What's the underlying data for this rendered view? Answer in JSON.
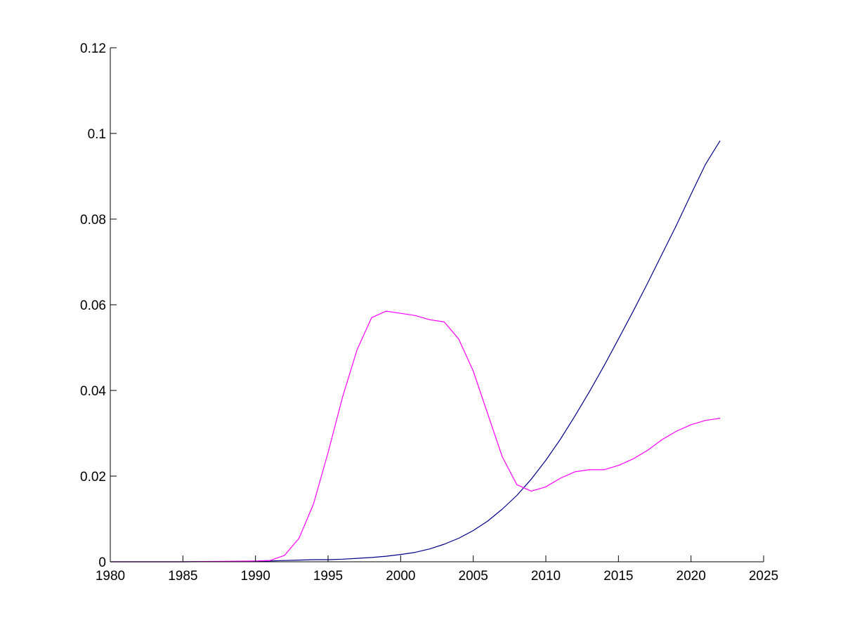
{
  "chart_data": {
    "type": "line",
    "title": "",
    "xlabel": "",
    "ylabel": "",
    "xlim": [
      1980,
      2025
    ],
    "ylim": [
      0,
      0.12
    ],
    "xticks": [
      1980,
      1985,
      1990,
      1995,
      2000,
      2005,
      2010,
      2015,
      2020,
      2025
    ],
    "yticks": [
      0,
      0.02,
      0.04,
      0.06,
      0.08,
      0.1,
      0.12
    ],
    "xtick_labels": [
      "1980",
      "1985",
      "1990",
      "1995",
      "2000",
      "2005",
      "2010",
      "2015",
      "2020",
      "2025"
    ],
    "ytick_labels": [
      "0",
      "0.02",
      "0.04",
      "0.06",
      "0.08",
      "0.1",
      "0.12"
    ],
    "grid": false,
    "legend": "none",
    "series": [
      {
        "color": "#00008b",
        "x": [
          1980,
          1985,
          1990,
          1991,
          1992,
          1993,
          1994,
          1995,
          1996,
          1997,
          1998,
          1999,
          2000,
          2001,
          2002,
          2003,
          2004,
          2005,
          2006,
          2007,
          2008,
          2009,
          2010,
          2011,
          2012,
          2013,
          2014,
          2015,
          2016,
          2017,
          2018,
          2019,
          2020,
          2021,
          2022
        ],
        "y": [
          0,
          0,
          0.0001,
          0.0002,
          0.0003,
          0.0004,
          0.0005,
          0.0005,
          0.0006,
          0.0008,
          0.001,
          0.0013,
          0.0017,
          0.0022,
          0.003,
          0.0041,
          0.0055,
          0.0073,
          0.0095,
          0.0123,
          0.0155,
          0.0193,
          0.0237,
          0.0286,
          0.034,
          0.0397,
          0.0457,
          0.052,
          0.0584,
          0.065,
          0.0718,
          0.0786,
          0.0858,
          0.0928,
          0.0983
        ]
      },
      {
        "color": "#ff00ff",
        "x": [
          1980,
          1985,
          1990,
          1991,
          1992,
          1993,
          1994,
          1995,
          1996,
          1997,
          1998,
          1999,
          2000,
          2001,
          2002,
          2003,
          2004,
          2005,
          2006,
          2007,
          2008,
          2009,
          2010,
          2011,
          2012,
          2013,
          2014,
          2015,
          2016,
          2017,
          2018,
          2019,
          2020,
          2021,
          2022
        ],
        "y": [
          0,
          0,
          0.0002,
          0.0003,
          0.0015,
          0.0055,
          0.0135,
          0.0255,
          0.0385,
          0.0495,
          0.057,
          0.0585,
          0.058,
          0.0575,
          0.0565,
          0.056,
          0.052,
          0.0445,
          0.0345,
          0.0245,
          0.018,
          0.0165,
          0.0175,
          0.0195,
          0.021,
          0.0215,
          0.0215,
          0.0225,
          0.024,
          0.026,
          0.0285,
          0.0305,
          0.032,
          0.033,
          0.0335
        ]
      }
    ]
  }
}
